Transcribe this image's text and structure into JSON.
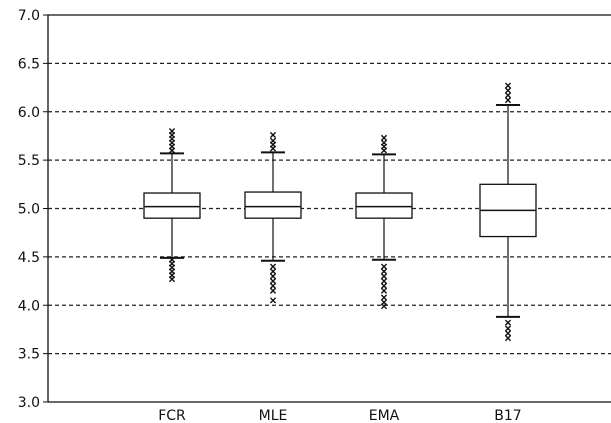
{
  "chart_data": {
    "type": "box",
    "title": "",
    "xlabel": "",
    "ylabel": "",
    "ylim": [
      3.0,
      7.0
    ],
    "yticks": [
      "3.0",
      "3.5",
      "4.0",
      "4.5",
      "5.0",
      "5.5",
      "6.0",
      "6.5",
      "7.0"
    ],
    "grid": "dashed horizontal at each y tick",
    "categories": [
      "FCR",
      "MLE",
      "EMA",
      "B17"
    ],
    "boxes": [
      {
        "label": "FCR",
        "q1": 4.9,
        "median": 5.02,
        "q3": 5.16,
        "whisker_low": 4.49,
        "whisker_high": 5.57,
        "outliers_low": [
          4.47,
          4.43,
          4.39,
          4.35,
          4.31,
          4.27
        ],
        "outliers_high": [
          5.6,
          5.64,
          5.68,
          5.72,
          5.76,
          5.8
        ]
      },
      {
        "label": "MLE",
        "q1": 4.9,
        "median": 5.02,
        "q3": 5.17,
        "whisker_low": 4.46,
        "whisker_high": 5.58,
        "outliers_low": [
          4.4,
          4.35,
          4.3,
          4.25,
          4.2,
          4.15,
          4.05
        ],
        "outliers_high": [
          5.62,
          5.66,
          5.7,
          5.76
        ]
      },
      {
        "label": "EMA",
        "q1": 4.9,
        "median": 5.02,
        "q3": 5.16,
        "whisker_low": 4.47,
        "whisker_high": 5.56,
        "outliers_low": [
          4.4,
          4.35,
          4.3,
          4.25,
          4.2,
          4.15,
          4.08,
          4.03,
          3.99
        ],
        "outliers_high": [
          5.6,
          5.64,
          5.68,
          5.73
        ]
      },
      {
        "label": "B17",
        "q1": 4.71,
        "median": 4.98,
        "q3": 5.25,
        "whisker_low": 3.88,
        "whisker_high": 6.07,
        "outliers_low": [
          3.82,
          3.76,
          3.71,
          3.66
        ],
        "outliers_high": [
          6.12,
          6.17,
          6.22,
          6.27
        ]
      }
    ]
  }
}
